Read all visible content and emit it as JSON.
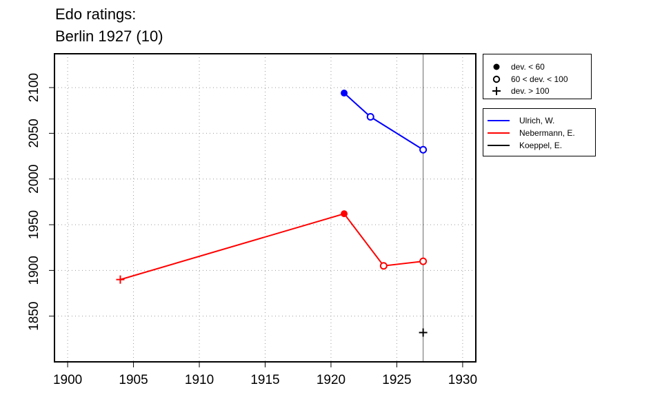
{
  "chart_data": {
    "type": "line",
    "title": "Edo ratings:",
    "subtitle": "Berlin 1927 (10)",
    "xlabel": "",
    "ylabel": "",
    "xlim": [
      1899,
      1931
    ],
    "ylim": [
      1800,
      2137
    ],
    "x_ticks": [
      1900,
      1905,
      1910,
      1915,
      1920,
      1925,
      1930
    ],
    "y_ticks": [
      1850,
      1900,
      1950,
      2000,
      2050,
      2100
    ],
    "grid": true,
    "event_year": 1927,
    "marker_legend": [
      {
        "symbol": "filled-circle",
        "label": "dev. < 60"
      },
      {
        "symbol": "open-circle",
        "label": "60 < dev. < 100"
      },
      {
        "symbol": "plus",
        "label": "dev. > 100"
      }
    ],
    "series": [
      {
        "name": "Ulrich, W.",
        "color": "#0000ff",
        "points": [
          {
            "x": 1921,
            "y": 2094,
            "marker": "filled-circle"
          },
          {
            "x": 1923,
            "y": 2068,
            "marker": "open-circle"
          },
          {
            "x": 1927,
            "y": 2032,
            "marker": "open-circle"
          }
        ]
      },
      {
        "name": "Nebermann, E.",
        "color": "#ff0000",
        "points": [
          {
            "x": 1904,
            "y": 1890,
            "marker": "plus"
          },
          {
            "x": 1921,
            "y": 1962,
            "marker": "filled-circle"
          },
          {
            "x": 1924,
            "y": 1905,
            "marker": "open-circle"
          },
          {
            "x": 1927,
            "y": 1910,
            "marker": "open-circle"
          }
        ]
      },
      {
        "name": "Koeppel, E.",
        "color": "#000000",
        "points": [
          {
            "x": 1927,
            "y": 1832,
            "marker": "plus"
          }
        ]
      }
    ]
  }
}
